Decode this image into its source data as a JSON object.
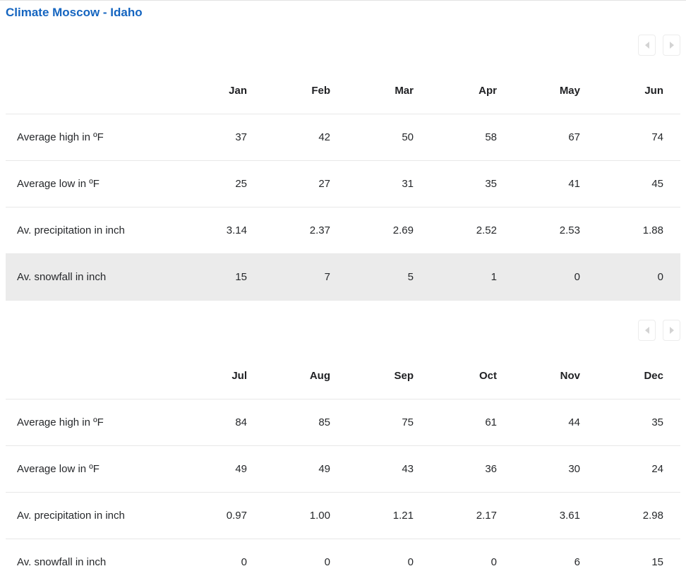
{
  "page": {
    "title": "Climate Moscow - Idaho"
  },
  "colors": {
    "title_blue": "#1565c0",
    "high_red": "#b2403d",
    "low_blue": "#2f80c2",
    "text_dark": "#26282b",
    "separator": "#e8e8e8",
    "highlight_row": "#ebebeb",
    "arrow_gray": "#d3d3d3"
  },
  "pager": {
    "prev_icon": "arrow-left-icon",
    "next_icon": "arrow-right-icon"
  },
  "tables": [
    {
      "months": [
        "Jan",
        "Feb",
        "Mar",
        "Apr",
        "May",
        "Jun"
      ],
      "rows": [
        {
          "label": "Average high in ºF",
          "values": [
            "37",
            "42",
            "50",
            "58",
            "67",
            "74"
          ]
        },
        {
          "label": "Average low in ºF",
          "values": [
            "25",
            "27",
            "31",
            "35",
            "41",
            "45"
          ]
        },
        {
          "label": "Av. precipitation in inch",
          "values": [
            "3.14",
            "2.37",
            "2.69",
            "2.52",
            "2.53",
            "1.88"
          ]
        },
        {
          "label": "Av. snowfall in inch",
          "values": [
            "15",
            "7",
            "5",
            "1",
            "0",
            "0"
          ]
        }
      ]
    },
    {
      "months": [
        "Jul",
        "Aug",
        "Sep",
        "Oct",
        "Nov",
        "Dec"
      ],
      "rows": [
        {
          "label": "Average high in ºF",
          "values": [
            "84",
            "85",
            "75",
            "61",
            "44",
            "35"
          ]
        },
        {
          "label": "Average low in ºF",
          "values": [
            "49",
            "49",
            "43",
            "36",
            "30",
            "24"
          ]
        },
        {
          "label": "Av. precipitation in inch",
          "values": [
            "0.97",
            "1.00",
            "1.21",
            "2.17",
            "3.61",
            "2.98"
          ]
        },
        {
          "label": "Av. snowfall in inch",
          "values": [
            "0",
            "0",
            "0",
            "0",
            "6",
            "15"
          ]
        }
      ]
    }
  ]
}
